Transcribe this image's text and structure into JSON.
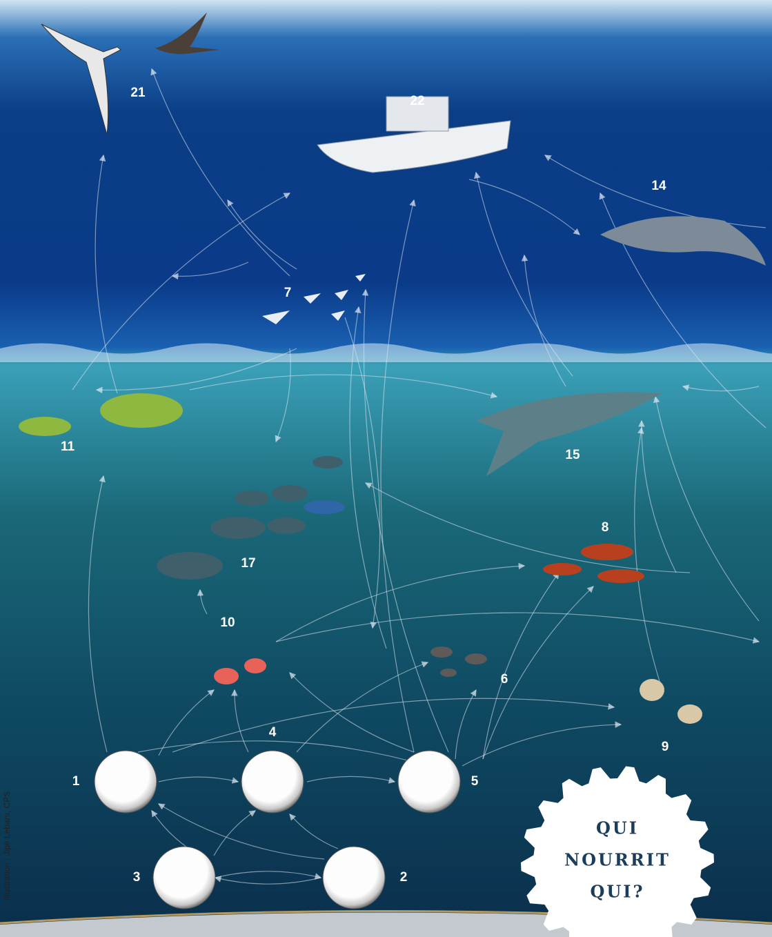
{
  "title": [
    "QUI",
    "NOURRIT",
    "QUI?"
  ],
  "credit": "Illustration : Jipé Lebars, CPS",
  "nodes": [
    {
      "label": "21"
    },
    {
      "label": "22"
    },
    {
      "label": "14"
    },
    {
      "label": "7"
    },
    {
      "label": "11"
    },
    {
      "label": "15"
    },
    {
      "label": "8"
    },
    {
      "label": "17"
    },
    {
      "label": "10"
    },
    {
      "label": "6"
    },
    {
      "label": "9"
    },
    {
      "label": "1"
    },
    {
      "label": "4"
    },
    {
      "label": "5"
    },
    {
      "label": "3"
    },
    {
      "label": "2"
    }
  ]
}
